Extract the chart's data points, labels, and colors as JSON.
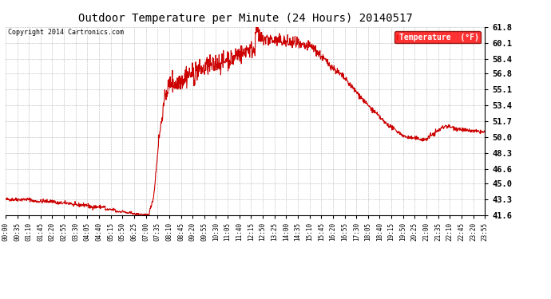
{
  "title": "Outdoor Temperature per Minute (24 Hours) 20140517",
  "copyright_text": "Copyright 2014 Cartronics.com",
  "legend_label": "Temperature  (°F)",
  "legend_bg": "#ff0000",
  "legend_text_color": "#ffffff",
  "line_color": "#cc0000",
  "background_color": "#ffffff",
  "plot_bg_color": "#ffffff",
  "grid_color": "#999999",
  "ylim": [
    41.6,
    61.8
  ],
  "yticks": [
    41.6,
    43.3,
    45.0,
    46.6,
    48.3,
    50.0,
    51.7,
    53.4,
    55.1,
    56.8,
    58.4,
    60.1,
    61.8
  ],
  "xtick_labels": [
    "00:00",
    "00:35",
    "01:10",
    "01:45",
    "02:20",
    "02:55",
    "03:30",
    "04:05",
    "04:40",
    "05:15",
    "05:50",
    "06:25",
    "07:00",
    "07:35",
    "08:10",
    "08:45",
    "09:20",
    "09:55",
    "10:30",
    "11:05",
    "11:40",
    "12:15",
    "12:50",
    "13:25",
    "14:00",
    "14:35",
    "15:10",
    "15:45",
    "16:20",
    "16:55",
    "17:30",
    "18:05",
    "18:40",
    "19:15",
    "19:50",
    "20:25",
    "21:00",
    "21:35",
    "22:10",
    "22:45",
    "23:20",
    "23:55"
  ],
  "figsize": [
    6.9,
    3.75
  ],
  "dpi": 100
}
